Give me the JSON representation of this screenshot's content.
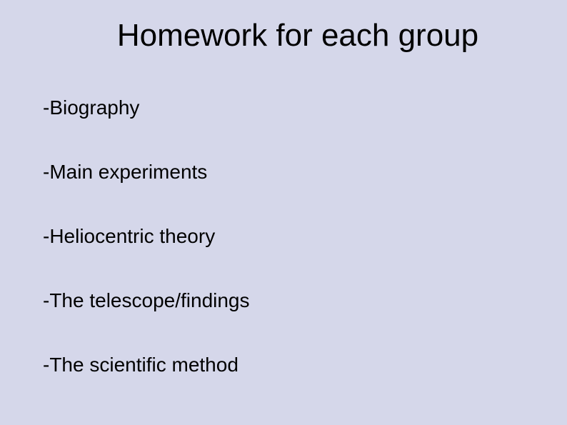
{
  "slide": {
    "title": "Homework for each group",
    "background_color": "#d5d7ea",
    "text_color": "#000000",
    "title_fontsize": 44,
    "bullet_fontsize": 28,
    "bullets": [
      "-Biography",
      "-Main experiments",
      "-Heliocentric theory",
      "-The telescope/findings",
      "-The scientific method"
    ]
  }
}
